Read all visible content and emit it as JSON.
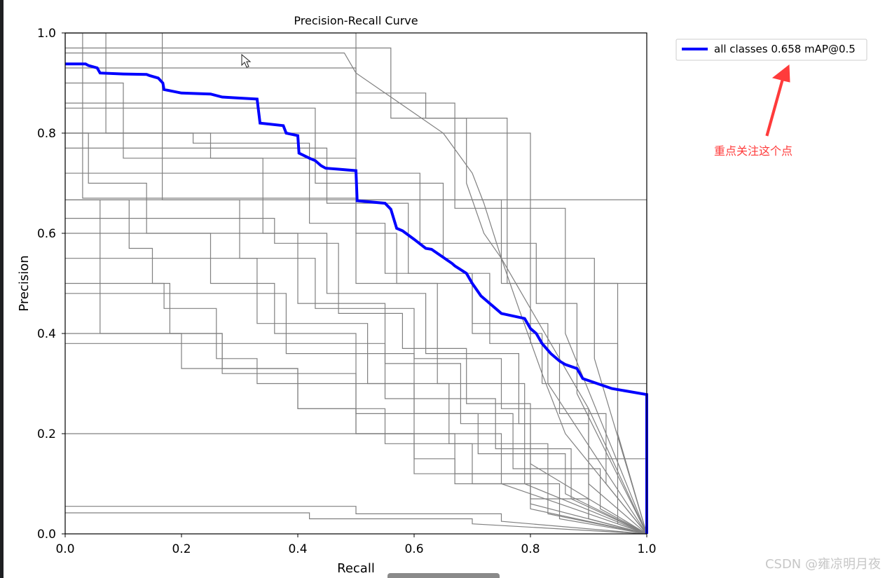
{
  "chart_data": {
    "type": "line",
    "title": "Precision-Recall Curve",
    "xlabel": "Recall",
    "ylabel": "Precision",
    "xlim": [
      0,
      1
    ],
    "ylim": [
      0,
      1
    ],
    "xticks": [
      "0.0",
      "0.2",
      "0.4",
      "0.6",
      "0.8",
      "1.0"
    ],
    "yticks": [
      "0.0",
      "0.2",
      "0.4",
      "0.6",
      "0.8",
      "1.0"
    ],
    "grid": false,
    "legend_position": "outside-top-right",
    "series": [
      {
        "name": "all classes 0.658 mAP@0.5",
        "color": "#0000ff",
        "x": [
          0.0,
          0.035,
          0.04,
          0.055,
          0.06,
          0.1,
          0.14,
          0.145,
          0.16,
          0.168,
          0.17,
          0.2,
          0.25,
          0.27,
          0.3,
          0.33,
          0.335,
          0.375,
          0.38,
          0.4,
          0.402,
          0.42,
          0.43,
          0.44,
          0.448,
          0.47,
          0.5,
          0.502,
          0.55,
          0.56,
          0.57,
          0.58,
          0.6,
          0.62,
          0.63,
          0.665,
          0.67,
          0.69,
          0.7,
          0.715,
          0.72,
          0.745,
          0.75,
          0.79,
          0.8,
          0.81,
          0.82,
          0.835,
          0.85,
          0.86,
          0.88,
          0.89,
          0.94,
          1.0,
          1.0
        ],
        "y": [
          0.938,
          0.938,
          0.935,
          0.93,
          0.92,
          0.918,
          0.917,
          0.915,
          0.91,
          0.9,
          0.887,
          0.88,
          0.878,
          0.872,
          0.87,
          0.868,
          0.82,
          0.815,
          0.8,
          0.795,
          0.76,
          0.75,
          0.745,
          0.735,
          0.73,
          0.728,
          0.725,
          0.665,
          0.66,
          0.648,
          0.61,
          0.605,
          0.588,
          0.57,
          0.568,
          0.54,
          0.535,
          0.52,
          0.5,
          0.475,
          0.47,
          0.445,
          0.44,
          0.43,
          0.41,
          0.4,
          0.38,
          0.36,
          0.345,
          0.338,
          0.33,
          0.31,
          0.29,
          0.278,
          0.0
        ]
      }
    ],
    "per_class_color": "#808080",
    "per_class_curves": [
      {
        "x": [
          0.0,
          0.167,
          0.167,
          1.0,
          1.0
        ],
        "y": [
          1.0,
          1.0,
          0.667,
          0.667,
          0.0
        ]
      },
      {
        "x": [
          0.0,
          0.5,
          0.5,
          0.75,
          0.75,
          1.0,
          1.0
        ],
        "y": [
          1.0,
          1.0,
          0.667,
          0.667,
          0.5,
          0.5,
          0.0
        ]
      },
      {
        "x": [
          0.0,
          0.0,
          0.06,
          0.06,
          0.2,
          0.2,
          0.4,
          0.4,
          0.55,
          0.55,
          0.7,
          0.7,
          0.85,
          0.85,
          1.0
        ],
        "y": [
          1.0,
          0.667,
          0.667,
          0.4,
          0.4,
          0.33,
          0.33,
          0.25,
          0.25,
          0.18,
          0.18,
          0.1,
          0.1,
          0.03,
          0.0
        ]
      },
      {
        "x": [
          0.0,
          0.07,
          0.07,
          0.25,
          0.25,
          0.5,
          0.5,
          0.57,
          0.57,
          0.7,
          0.7,
          0.82,
          0.82,
          1.0,
          1.0
        ],
        "y": [
          1.0,
          1.0,
          0.8,
          0.8,
          0.75,
          0.75,
          0.6,
          0.6,
          0.5,
          0.5,
          0.4,
          0.4,
          0.3,
          0.3,
          0.0
        ]
      },
      {
        "x": [
          0.0,
          0.3,
          0.3,
          0.43,
          0.43,
          0.6,
          0.6,
          0.75,
          0.75,
          0.9,
          0.9,
          1.0,
          1.0
        ],
        "y": [
          0.667,
          0.667,
          0.55,
          0.55,
          0.45,
          0.45,
          0.35,
          0.35,
          0.25,
          0.25,
          0.15,
          0.15,
          0.0
        ]
      },
      {
        "x": [
          0.0,
          0.11,
          0.11,
          0.15,
          0.15,
          0.18,
          0.18,
          0.27,
          0.27,
          0.4,
          0.4,
          0.5,
          0.5,
          0.6,
          0.6,
          0.67,
          0.67,
          0.8,
          0.8,
          1.0
        ],
        "y": [
          0.667,
          0.667,
          0.57,
          0.57,
          0.5,
          0.5,
          0.4,
          0.4,
          0.33,
          0.33,
          0.25,
          0.25,
          0.2,
          0.2,
          0.15,
          0.15,
          0.1,
          0.1,
          0.05,
          0.0
        ]
      },
      {
        "x": [
          0.0,
          0.17,
          0.17,
          0.26,
          0.26,
          0.33,
          0.33,
          0.5,
          0.5,
          0.67,
          0.67,
          0.8,
          0.8,
          1.0
        ],
        "y": [
          0.5,
          0.5,
          0.45,
          0.45,
          0.35,
          0.35,
          0.3,
          0.3,
          0.2,
          0.2,
          0.12,
          0.12,
          0.06,
          0.0
        ]
      },
      {
        "x": [
          0.0,
          0.1,
          0.1,
          0.34,
          0.34,
          0.45,
          0.45,
          0.62,
          0.62,
          0.78,
          0.78,
          0.9,
          0.9,
          1.0
        ],
        "y": [
          0.9,
          0.9,
          0.75,
          0.75,
          0.6,
          0.6,
          0.48,
          0.48,
          0.36,
          0.36,
          0.22,
          0.22,
          0.1,
          0.0
        ]
      },
      {
        "x": [
          0.0,
          0.43,
          0.43,
          0.65,
          0.65,
          0.8,
          0.8,
          0.95,
          0.95,
          1.0
        ],
        "y": [
          0.85,
          0.85,
          0.7,
          0.7,
          0.55,
          0.55,
          0.38,
          0.38,
          0.2,
          0.0
        ]
      },
      {
        "x": [
          0.0,
          0.22,
          0.22,
          0.42,
          0.42,
          0.55,
          0.55,
          0.7,
          0.7,
          0.83,
          0.83,
          1.0
        ],
        "y": [
          0.8,
          0.8,
          0.78,
          0.78,
          0.62,
          0.62,
          0.52,
          0.52,
          0.42,
          0.42,
          0.3,
          0.0
        ]
      },
      {
        "x": [
          0.0,
          0.5,
          0.5,
          0.62,
          0.62,
          0.69,
          0.69,
          0.72,
          0.75,
          0.8,
          0.85,
          0.9,
          1.0
        ],
        "y": [
          0.93,
          0.93,
          0.88,
          0.88,
          0.83,
          0.83,
          0.7,
          0.6,
          0.55,
          0.45,
          0.35,
          0.25,
          0.0
        ]
      },
      {
        "x": [
          0.0,
          0.48,
          0.5,
          0.55,
          0.6,
          0.65,
          0.7,
          0.72,
          0.75,
          0.78,
          0.82,
          0.86,
          1.0
        ],
        "y": [
          0.96,
          0.96,
          0.92,
          0.88,
          0.84,
          0.8,
          0.72,
          0.66,
          0.55,
          0.45,
          0.32,
          0.2,
          0.0
        ]
      },
      {
        "x": [
          0.0,
          0.56,
          0.56,
          0.76,
          0.76,
          0.95,
          0.95,
          1.0
        ],
        "y": [
          0.97,
          0.97,
          0.83,
          0.83,
          0.5,
          0.5,
          0.02,
          0.0
        ]
      },
      {
        "x": [
          0.0,
          0.33,
          0.33,
          0.52,
          0.52,
          0.66,
          0.66,
          0.83,
          0.83,
          1.0
        ],
        "y": [
          0.55,
          0.55,
          0.42,
          0.42,
          0.3,
          0.3,
          0.18,
          0.18,
          0.04,
          0.0
        ]
      },
      {
        "x": [
          0.0,
          0.4,
          0.4,
          0.55,
          0.55,
          0.68,
          0.68,
          0.8,
          0.8,
          0.9,
          0.9,
          1.0
        ],
        "y": [
          0.6,
          0.6,
          0.46,
          0.46,
          0.34,
          0.34,
          0.22,
          0.22,
          0.12,
          0.12,
          0.03,
          0.0
        ]
      },
      {
        "x": [
          0.0,
          0.27,
          0.27,
          0.5,
          0.5,
          0.71,
          0.71,
          0.86,
          0.86,
          1.0
        ],
        "y": [
          0.4,
          0.4,
          0.32,
          0.32,
          0.24,
          0.24,
          0.16,
          0.16,
          0.08,
          0.0
        ]
      },
      {
        "x": [
          0.0,
          0.6,
          0.6,
          0.8,
          0.8,
          0.9,
          0.9,
          1.0
        ],
        "y": [
          0.2,
          0.2,
          0.12,
          0.12,
          0.07,
          0.07,
          0.03,
          0.0
        ]
      },
      {
        "x": [
          0.0,
          0.5,
          0.5,
          0.75,
          0.75,
          1.0
        ],
        "y": [
          0.055,
          0.055,
          0.04,
          0.04,
          0.025,
          0.0
        ]
      },
      {
        "x": [
          0.0,
          0.42,
          0.42,
          0.7,
          0.7,
          1.0
        ],
        "y": [
          0.042,
          0.042,
          0.03,
          0.03,
          0.02,
          0.0
        ]
      },
      {
        "x": [
          0.0,
          0.0,
          0.04,
          0.04,
          0.14,
          0.14,
          0.25,
          0.25,
          0.36,
          0.36,
          0.5,
          0.5,
          0.6,
          0.6,
          0.75,
          0.75,
          1.0
        ],
        "y": [
          1.0,
          0.8,
          0.8,
          0.7,
          0.7,
          0.6,
          0.6,
          0.5,
          0.5,
          0.4,
          0.4,
          0.3,
          0.3,
          0.2,
          0.2,
          0.1,
          0.0
        ]
      },
      {
        "x": [
          0.0,
          0.36,
          0.36,
          0.47,
          0.47,
          0.58,
          0.58,
          0.69,
          0.69,
          0.8,
          0.8,
          1.0
        ],
        "y": [
          0.63,
          0.63,
          0.58,
          0.58,
          0.44,
          0.44,
          0.37,
          0.37,
          0.26,
          0.26,
          0.14,
          0.0
        ]
      },
      {
        "x": [
          0.0,
          0.45,
          0.45,
          0.59,
          0.59,
          0.73,
          0.73,
          0.85,
          0.85,
          0.93,
          0.93,
          1.0
        ],
        "y": [
          0.77,
          0.77,
          0.66,
          0.66,
          0.52,
          0.52,
          0.38,
          0.38,
          0.24,
          0.24,
          0.1,
          0.0
        ]
      },
      {
        "x": [
          0.0,
          0.61,
          0.61,
          0.81,
          0.81,
          0.88,
          0.88,
          1.0
        ],
        "y": [
          0.72,
          0.72,
          0.58,
          0.58,
          0.46,
          0.46,
          0.28,
          0.0
        ]
      },
      {
        "x": [
          0.0,
          0.03,
          0.03,
          0.5,
          0.5,
          0.64,
          0.64,
          0.79,
          0.79,
          1.0
        ],
        "y": [
          1.0,
          1.0,
          0.67,
          0.67,
          0.5,
          0.5,
          0.3,
          0.3,
          0.1,
          0.0
        ]
      },
      {
        "x": [
          0.0,
          0.67,
          0.67,
          0.86,
          0.86,
          1.0
        ],
        "y": [
          0.86,
          0.86,
          0.65,
          0.65,
          0.4,
          0.0
        ]
      },
      {
        "x": [
          0.0,
          0.55,
          0.55,
          0.74,
          0.74,
          0.87,
          0.87,
          1.0
        ],
        "y": [
          0.38,
          0.38,
          0.27,
          0.27,
          0.17,
          0.17,
          0.07,
          0.0
        ]
      },
      {
        "x": [
          0.0,
          0.38,
          0.38,
          0.6,
          0.6,
          0.77,
          0.77,
          0.92,
          0.92,
          1.0
        ],
        "y": [
          0.48,
          0.48,
          0.36,
          0.36,
          0.24,
          0.24,
          0.13,
          0.13,
          0.05,
          0.0
        ]
      },
      {
        "x": [
          0.0,
          0.8,
          0.8,
          0.91,
          0.91,
          1.0
        ],
        "y": [
          0.8,
          0.8,
          0.55,
          0.55,
          0.35,
          0.0
        ]
      }
    ],
    "legend_marker": "—"
  },
  "annotation": {
    "text": "重点关注这个点",
    "color": "#ff3b3b"
  },
  "watermark": "CSDN @雍凉明月夜",
  "cursor_icon": "mouse-pointer-icon"
}
